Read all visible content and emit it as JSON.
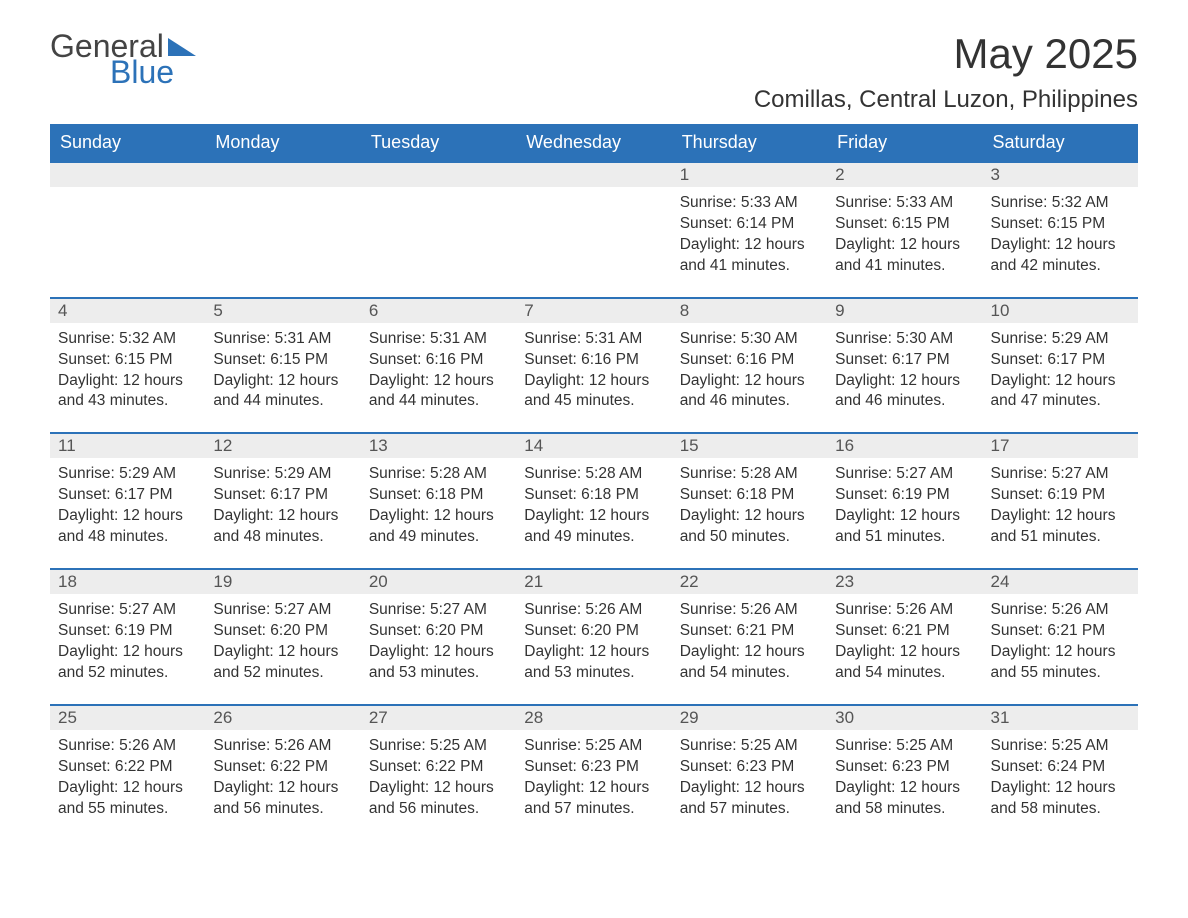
{
  "logo": {
    "word1": "General",
    "word2": "Blue",
    "tri_color": "#2c72b8"
  },
  "title": "May 2025",
  "subtitle": "Comillas, Central Luzon, Philippines",
  "colors": {
    "header_bg": "#2c72b8",
    "header_text": "#ffffff",
    "daynum_bg": "#ededed",
    "row_border": "#2c72b8",
    "body_text": "#333333"
  },
  "fonts": {
    "title_size": 42,
    "subtitle_size": 24,
    "th_size": 18,
    "cell_size": 15.5
  },
  "weekdays": [
    "Sunday",
    "Monday",
    "Tuesday",
    "Wednesday",
    "Thursday",
    "Friday",
    "Saturday"
  ],
  "weeks": [
    [
      null,
      null,
      null,
      null,
      {
        "n": "1",
        "sr": "Sunrise: 5:33 AM",
        "ss": "Sunset: 6:14 PM",
        "dl": "Daylight: 12 hours and 41 minutes."
      },
      {
        "n": "2",
        "sr": "Sunrise: 5:33 AM",
        "ss": "Sunset: 6:15 PM",
        "dl": "Daylight: 12 hours and 41 minutes."
      },
      {
        "n": "3",
        "sr": "Sunrise: 5:32 AM",
        "ss": "Sunset: 6:15 PM",
        "dl": "Daylight: 12 hours and 42 minutes."
      }
    ],
    [
      {
        "n": "4",
        "sr": "Sunrise: 5:32 AM",
        "ss": "Sunset: 6:15 PM",
        "dl": "Daylight: 12 hours and 43 minutes."
      },
      {
        "n": "5",
        "sr": "Sunrise: 5:31 AM",
        "ss": "Sunset: 6:15 PM",
        "dl": "Daylight: 12 hours and 44 minutes."
      },
      {
        "n": "6",
        "sr": "Sunrise: 5:31 AM",
        "ss": "Sunset: 6:16 PM",
        "dl": "Daylight: 12 hours and 44 minutes."
      },
      {
        "n": "7",
        "sr": "Sunrise: 5:31 AM",
        "ss": "Sunset: 6:16 PM",
        "dl": "Daylight: 12 hours and 45 minutes."
      },
      {
        "n": "8",
        "sr": "Sunrise: 5:30 AM",
        "ss": "Sunset: 6:16 PM",
        "dl": "Daylight: 12 hours and 46 minutes."
      },
      {
        "n": "9",
        "sr": "Sunrise: 5:30 AM",
        "ss": "Sunset: 6:17 PM",
        "dl": "Daylight: 12 hours and 46 minutes."
      },
      {
        "n": "10",
        "sr": "Sunrise: 5:29 AM",
        "ss": "Sunset: 6:17 PM",
        "dl": "Daylight: 12 hours and 47 minutes."
      }
    ],
    [
      {
        "n": "11",
        "sr": "Sunrise: 5:29 AM",
        "ss": "Sunset: 6:17 PM",
        "dl": "Daylight: 12 hours and 48 minutes."
      },
      {
        "n": "12",
        "sr": "Sunrise: 5:29 AM",
        "ss": "Sunset: 6:17 PM",
        "dl": "Daylight: 12 hours and 48 minutes."
      },
      {
        "n": "13",
        "sr": "Sunrise: 5:28 AM",
        "ss": "Sunset: 6:18 PM",
        "dl": "Daylight: 12 hours and 49 minutes."
      },
      {
        "n": "14",
        "sr": "Sunrise: 5:28 AM",
        "ss": "Sunset: 6:18 PM",
        "dl": "Daylight: 12 hours and 49 minutes."
      },
      {
        "n": "15",
        "sr": "Sunrise: 5:28 AM",
        "ss": "Sunset: 6:18 PM",
        "dl": "Daylight: 12 hours and 50 minutes."
      },
      {
        "n": "16",
        "sr": "Sunrise: 5:27 AM",
        "ss": "Sunset: 6:19 PM",
        "dl": "Daylight: 12 hours and 51 minutes."
      },
      {
        "n": "17",
        "sr": "Sunrise: 5:27 AM",
        "ss": "Sunset: 6:19 PM",
        "dl": "Daylight: 12 hours and 51 minutes."
      }
    ],
    [
      {
        "n": "18",
        "sr": "Sunrise: 5:27 AM",
        "ss": "Sunset: 6:19 PM",
        "dl": "Daylight: 12 hours and 52 minutes."
      },
      {
        "n": "19",
        "sr": "Sunrise: 5:27 AM",
        "ss": "Sunset: 6:20 PM",
        "dl": "Daylight: 12 hours and 52 minutes."
      },
      {
        "n": "20",
        "sr": "Sunrise: 5:27 AM",
        "ss": "Sunset: 6:20 PM",
        "dl": "Daylight: 12 hours and 53 minutes."
      },
      {
        "n": "21",
        "sr": "Sunrise: 5:26 AM",
        "ss": "Sunset: 6:20 PM",
        "dl": "Daylight: 12 hours and 53 minutes."
      },
      {
        "n": "22",
        "sr": "Sunrise: 5:26 AM",
        "ss": "Sunset: 6:21 PM",
        "dl": "Daylight: 12 hours and 54 minutes."
      },
      {
        "n": "23",
        "sr": "Sunrise: 5:26 AM",
        "ss": "Sunset: 6:21 PM",
        "dl": "Daylight: 12 hours and 54 minutes."
      },
      {
        "n": "24",
        "sr": "Sunrise: 5:26 AM",
        "ss": "Sunset: 6:21 PM",
        "dl": "Daylight: 12 hours and 55 minutes."
      }
    ],
    [
      {
        "n": "25",
        "sr": "Sunrise: 5:26 AM",
        "ss": "Sunset: 6:22 PM",
        "dl": "Daylight: 12 hours and 55 minutes."
      },
      {
        "n": "26",
        "sr": "Sunrise: 5:26 AM",
        "ss": "Sunset: 6:22 PM",
        "dl": "Daylight: 12 hours and 56 minutes."
      },
      {
        "n": "27",
        "sr": "Sunrise: 5:25 AM",
        "ss": "Sunset: 6:22 PM",
        "dl": "Daylight: 12 hours and 56 minutes."
      },
      {
        "n": "28",
        "sr": "Sunrise: 5:25 AM",
        "ss": "Sunset: 6:23 PM",
        "dl": "Daylight: 12 hours and 57 minutes."
      },
      {
        "n": "29",
        "sr": "Sunrise: 5:25 AM",
        "ss": "Sunset: 6:23 PM",
        "dl": "Daylight: 12 hours and 57 minutes."
      },
      {
        "n": "30",
        "sr": "Sunrise: 5:25 AM",
        "ss": "Sunset: 6:23 PM",
        "dl": "Daylight: 12 hours and 58 minutes."
      },
      {
        "n": "31",
        "sr": "Sunrise: 5:25 AM",
        "ss": "Sunset: 6:24 PM",
        "dl": "Daylight: 12 hours and 58 minutes."
      }
    ]
  ]
}
